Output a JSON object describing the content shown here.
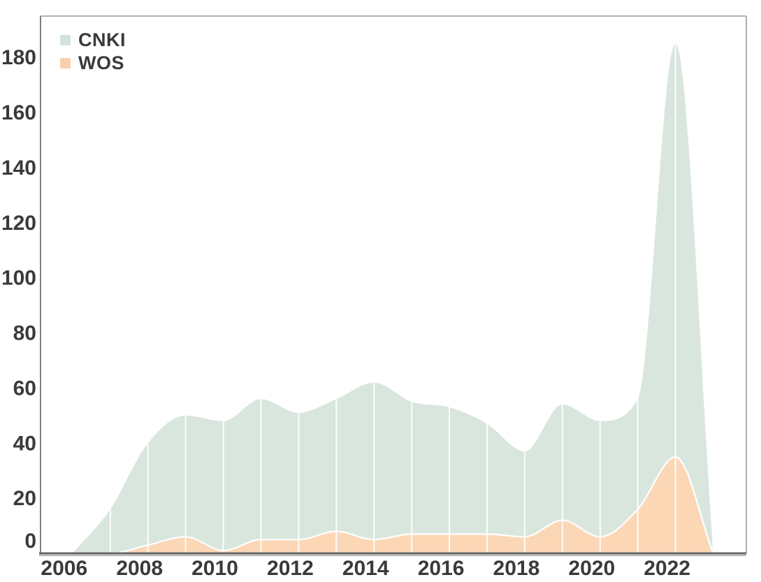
{
  "chart_data": {
    "type": "area",
    "title": "",
    "xlabel": "",
    "ylabel": "",
    "x": [
      2006,
      2007,
      2008,
      2009,
      2010,
      2011,
      2012,
      2013,
      2014,
      2015,
      2016,
      2017,
      2018,
      2019,
      2020,
      2021,
      2022,
      2023
    ],
    "series": [
      {
        "name": "CNKI",
        "fill_color": "#d9e6de",
        "stroke_color": "none",
        "values": [
          0,
          16,
          40,
          50,
          48,
          56,
          51,
          56,
          62,
          55,
          53,
          47,
          37,
          54,
          48,
          56,
          185,
          1
        ]
      },
      {
        "name": "WOS",
        "fill_color": "#fcd7b6",
        "stroke_color": "#ffffff",
        "values": [
          0,
          0,
          3,
          6,
          1,
          5,
          5,
          8,
          5,
          7,
          7,
          7,
          6,
          12,
          6,
          16,
          35,
          0
        ]
      }
    ],
    "legend": {
      "position": "top-left",
      "swatch_colors": [
        "#d4e3d9",
        "#f9cfad"
      ]
    },
    "x_tick_labels": [
      "2006",
      "2008",
      "2010",
      "2012",
      "2014",
      "2016",
      "2018",
      "2020",
      "2022"
    ],
    "x_tick_years": [
      2006,
      2008,
      2010,
      2012,
      2014,
      2016,
      2018,
      2020,
      2022
    ],
    "y_ticks": [
      0,
      20,
      40,
      60,
      80,
      100,
      120,
      140,
      160,
      180
    ],
    "ylim": [
      0,
      195
    ],
    "xlim": [
      2005.15,
      2023.88
    ],
    "grid": "vertical-white-lines-per-year",
    "background_color": "#ffffff",
    "gridline_color": "#ffffff",
    "axis_border_color": "#9a9a9a",
    "bottom_axis_color": "#666666",
    "tick_label_color": "#3a3a3a"
  }
}
